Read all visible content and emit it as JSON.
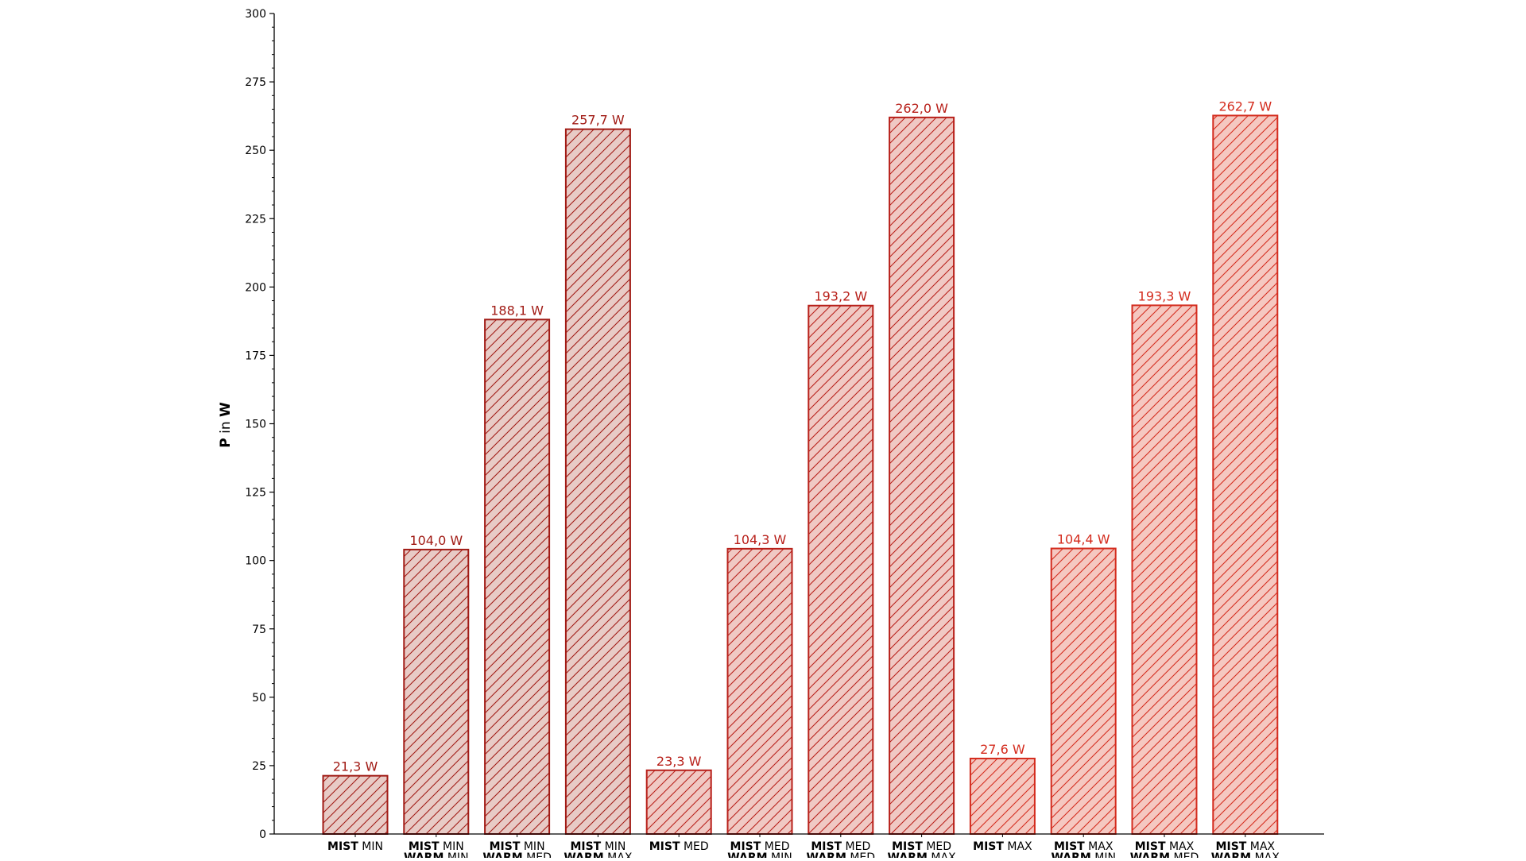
{
  "chart_data": {
    "type": "bar",
    "title": "",
    "xlabel": "",
    "ylabel": {
      "bold_part": "P",
      "plain_part": " in ",
      "unit": "W"
    },
    "ylim": [
      0,
      300
    ],
    "yticks_major": [
      0,
      25,
      50,
      75,
      100,
      125,
      150,
      175,
      200,
      225,
      250,
      275,
      300
    ],
    "yticks_minor_step": 5,
    "grid": false,
    "legend": "none",
    "categories": [
      [
        {
          "mode": "MIST",
          "level": "MIN"
        }
      ],
      [
        {
          "mode": "MIST",
          "level": "MIN"
        },
        {
          "mode": "WARM",
          "level": "MIN"
        }
      ],
      [
        {
          "mode": "MIST",
          "level": "MIN"
        },
        {
          "mode": "WARM",
          "level": "MED"
        }
      ],
      [
        {
          "mode": "MIST",
          "level": "MIN"
        },
        {
          "mode": "WARM",
          "level": "MAX"
        }
      ],
      [
        {
          "mode": "MIST",
          "level": "MED"
        }
      ],
      [
        {
          "mode": "MIST",
          "level": "MED"
        },
        {
          "mode": "WARM",
          "level": "MIN"
        }
      ],
      [
        {
          "mode": "MIST",
          "level": "MED"
        },
        {
          "mode": "WARM",
          "level": "MED"
        }
      ],
      [
        {
          "mode": "MIST",
          "level": "MED"
        },
        {
          "mode": "WARM",
          "level": "MAX"
        }
      ],
      [
        {
          "mode": "MIST",
          "level": "MAX"
        }
      ],
      [
        {
          "mode": "MIST",
          "level": "MAX"
        },
        {
          "mode": "WARM",
          "level": "MIN"
        }
      ],
      [
        {
          "mode": "MIST",
          "level": "MAX"
        },
        {
          "mode": "WARM",
          "level": "MED"
        }
      ],
      [
        {
          "mode": "MIST",
          "level": "MAX"
        },
        {
          "mode": "WARM",
          "level": "MAX"
        }
      ]
    ],
    "values": [
      21.3,
      104.0,
      188.1,
      257.7,
      23.3,
      104.3,
      193.2,
      262.0,
      27.6,
      104.4,
      193.3,
      262.7
    ],
    "value_labels": [
      "21,3 W",
      "104,0 W",
      "188,1 W",
      "257,7 W",
      "23,3 W",
      "104,3 W",
      "193,2 W",
      "262,0 W",
      "27,6 W",
      "104,4 W",
      "193,3 W",
      "262,7 W"
    ],
    "colors": {
      "edge": [
        "#a11b15",
        "#a11b15",
        "#a11b15",
        "#a11b15",
        "#b8201a",
        "#b8201a",
        "#b8201a",
        "#b8201a",
        "#d42c1e",
        "#d42c1e",
        "#d42c1e",
        "#d42c1e"
      ],
      "fill": [
        "#e8cbc6",
        "#e8cbc6",
        "#e8cbc6",
        "#e8cbc6",
        "#f0c9c4",
        "#f0c9c4",
        "#f0c9c4",
        "#f0c9c4",
        "#f5c8c1",
        "#f5c8c1",
        "#f5c8c1",
        "#f5c8c1"
      ],
      "hatch": "diagonal"
    }
  }
}
